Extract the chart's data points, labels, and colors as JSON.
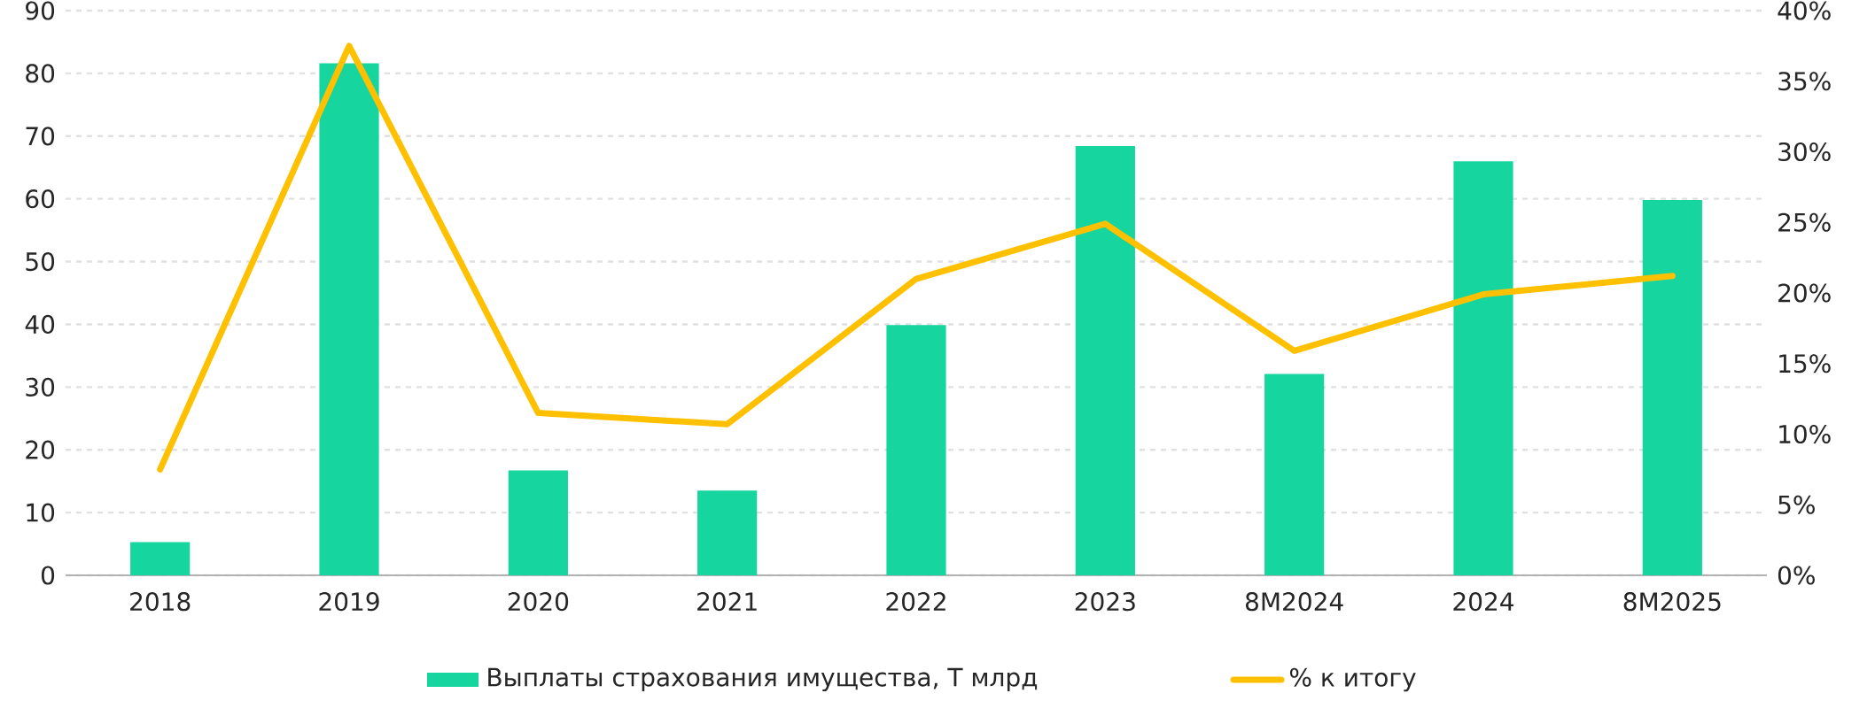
{
  "chart_data": {
    "type": "bar",
    "categories": [
      "2018",
      "2019",
      "2020",
      "2021",
      "2022",
      "2023",
      "8M2024",
      "2024",
      "8M2025"
    ],
    "series": [
      {
        "name": "Выплаты страхования имущества, Т млрд",
        "color": "#16d59e",
        "values": [
          5.3,
          81.6,
          16.7,
          13.5,
          39.9,
          68.4,
          32.1,
          66.0,
          59.8
        ]
      },
      {
        "name": "% к итогу",
        "type": "line",
        "axis": "y2",
        "color": "#ffc000",
        "values": [
          7.5,
          37.5,
          11.5,
          10.7,
          21.0,
          24.9,
          15.9,
          19.9,
          21.2
        ]
      }
    ],
    "ylim": [
      0,
      90
    ],
    "yticks": [
      0,
      10,
      20,
      30,
      40,
      50,
      60,
      70,
      80,
      90
    ],
    "y2lim": [
      0,
      40
    ],
    "y2ticks": [
      {
        "value": 0,
        "label": "0%"
      },
      {
        "value": 5,
        "label": "5%"
      },
      {
        "value": 10,
        "label": "10%"
      },
      {
        "value": 15,
        "label": "15%"
      },
      {
        "value": 20,
        "label": "20%"
      },
      {
        "value": 25,
        "label": "25%"
      },
      {
        "value": 30,
        "label": "30%"
      },
      {
        "value": 35,
        "label": "35%"
      },
      {
        "value": 40,
        "label": "40%"
      }
    ],
    "grid": "y",
    "legend": "bottom",
    "marker": "none",
    "line_style": "solid"
  }
}
